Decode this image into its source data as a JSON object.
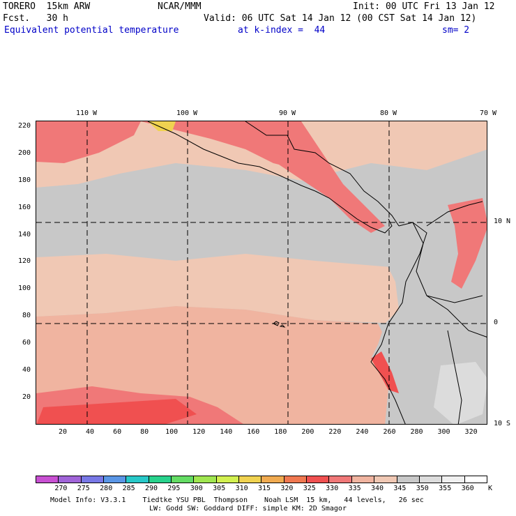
{
  "header": {
    "line1_left": "TORERO  15km ARW",
    "line1_mid": "NCAR/MMM",
    "line1_right": "Init: 00 UTC Fri 13 Jan 12",
    "line2_left": "Fcst.   30 h",
    "line2_right": "Valid: 06 UTC Sat 14 Jan 12 (00 CST Sat 14 Jan 12)",
    "line3_field": "Equivalent potential temperature",
    "line3_level": "at k-index =  44",
    "line3_smooth": "sm= 2"
  },
  "axes": {
    "x_ticks": [
      "20",
      "40",
      "60",
      "80",
      "100",
      "120",
      "140",
      "160",
      "180",
      "200",
      "220",
      "240",
      "260",
      "280",
      "300",
      "320"
    ],
    "y_ticks": [
      "220",
      "200",
      "180",
      "160",
      "140",
      "120",
      "100",
      "80",
      "60",
      "40",
      "20"
    ],
    "lon_labels": [
      "110 W",
      "100 W",
      "90 W",
      "80 W",
      "70 W"
    ],
    "lat_labels": [
      "10 N",
      "0",
      "10 S"
    ]
  },
  "colorbar": {
    "unit": "K",
    "levels": [
      "270",
      "275",
      "280",
      "285",
      "290",
      "295",
      "300",
      "305",
      "310",
      "315",
      "320",
      "325",
      "330",
      "335",
      "340",
      "345",
      "350",
      "355",
      "360"
    ],
    "colors": [
      "#c850d2",
      "#a064d8",
      "#7878e6",
      "#5a96e6",
      "#28c8c8",
      "#28d28c",
      "#64dc64",
      "#a0e650",
      "#d2f050",
      "#f0d250",
      "#f0aa50",
      "#f07850",
      "#f05050",
      "#f07878",
      "#f0b4a0",
      "#f0c8b4",
      "#c8c8c8",
      "#dcdcdc",
      "#f0f0f0",
      "#ffffff"
    ]
  },
  "footer": {
    "line1": "Model Info: V3.3.1    Tiedtke YSU PBL  Thompson    Noah LSM  15 km,   44 levels,   26 sec",
    "line2": "LW: Godd SW: Goddard DIFF: simple KM: 2D Smagor"
  }
}
